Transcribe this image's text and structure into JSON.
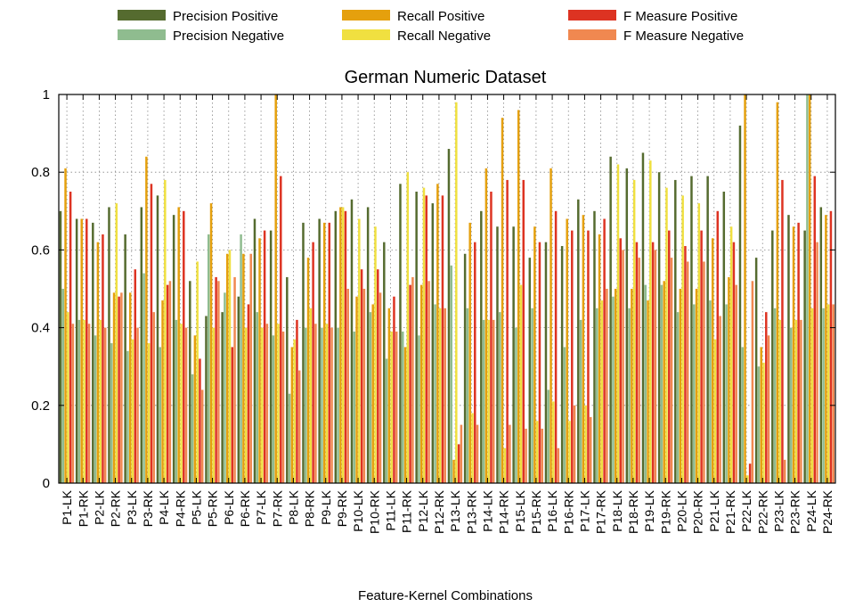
{
  "chart_data": {
    "type": "bar",
    "title": "German Numeric Dataset",
    "xlabel": "Feature-Kernel Combinations",
    "ylabel": "",
    "ylim": [
      0,
      1
    ],
    "yticks": [
      0,
      0.2,
      0.4,
      0.6,
      0.8,
      1
    ],
    "ytick_labels": [
      "0",
      "0.2",
      "0.4",
      "0.6",
      "0.8",
      "1"
    ],
    "grid": true,
    "legend_position": "top",
    "categories": [
      "P1-LK",
      "P1-RK",
      "P2-LK",
      "P2-RK",
      "P3-LK",
      "P3-RK",
      "P4-LK",
      "P4-RK",
      "P5-LK",
      "P5-RK",
      "P6-LK",
      "P6-RK",
      "P7-LK",
      "P7-RK",
      "P8-LK",
      "P8-RK",
      "P9-LK",
      "P9-RK",
      "P10-LK",
      "P10-RK",
      "P11-LK",
      "P11-RK",
      "P12-LK",
      "P12-RK",
      "P13-LK",
      "P13-RK",
      "P14-LK",
      "P14-RK",
      "P15-LK",
      "P15-RK",
      "P16-LK",
      "P16-RK",
      "P17-LK",
      "P17-RK",
      "P18-LK",
      "P18-RK",
      "P19-LK",
      "P19-RK",
      "P20-LK",
      "P20-RK",
      "P21-LK",
      "P21-RK",
      "P22-LK",
      "P22-RK",
      "P23-LK",
      "P23-RK",
      "P24-LK",
      "P24-RK"
    ],
    "series": [
      {
        "name": "Precision Positive",
        "color": "#556b2f",
        "values": [
          0.7,
          0.68,
          0.67,
          0.71,
          0.64,
          0.71,
          0.74,
          0.69,
          0.52,
          0.43,
          0.44,
          0.48,
          0.68,
          0.65,
          0.53,
          0.67,
          0.68,
          0.7,
          0.73,
          0.71,
          0.62,
          0.77,
          0.75,
          0.72,
          0.86,
          0.59,
          0.7,
          0.66,
          0.66,
          0.58,
          0.62,
          0.61,
          0.73,
          0.7,
          0.84,
          0.81,
          0.85,
          0.8,
          0.78,
          0.79,
          0.79,
          0.75,
          0.92,
          0.58,
          0.65,
          0.69,
          0.65,
          0.71
        ]
      },
      {
        "name": "Precision Negative",
        "color": "#8fbc8f",
        "values": [
          0.5,
          0.42,
          0.38,
          0.36,
          0.34,
          0.54,
          0.35,
          0.42,
          0.28,
          0.64,
          0.49,
          0.64,
          0.44,
          0.38,
          0.23,
          0.4,
          0.4,
          0.4,
          0.39,
          0.44,
          0.32,
          0.39,
          0.38,
          0.46,
          0.56,
          0.45,
          0.42,
          0.44,
          0.4,
          0.45,
          0.24,
          0.35,
          0.42,
          0.45,
          0.48,
          0.45,
          0.51,
          0.51,
          0.44,
          0.46,
          0.47,
          0.46,
          0.35,
          0.3,
          0.45,
          0.4,
          1.0,
          0.45
        ]
      },
      {
        "name": "Recall Positive",
        "color": "#e5a00d",
        "values": [
          0.81,
          0.68,
          0.62,
          0.49,
          0.49,
          0.84,
          0.47,
          0.71,
          0.38,
          0.72,
          0.59,
          0.59,
          0.63,
          1.0,
          0.35,
          0.58,
          0.67,
          0.71,
          0.48,
          0.46,
          0.45,
          0.35,
          0.51,
          0.77,
          0.06,
          0.67,
          0.81,
          0.94,
          0.96,
          0.66,
          0.81,
          0.68,
          0.69,
          0.64,
          0.5,
          0.5,
          0.47,
          0.52,
          0.5,
          0.5,
          0.63,
          0.53,
          1.0,
          0.35,
          0.98,
          0.66,
          1.0,
          0.69
        ]
      },
      {
        "name": "Recall Negative",
        "color": "#f0e040",
        "values": [
          0.44,
          0.42,
          0.42,
          0.72,
          0.37,
          0.36,
          0.78,
          0.41,
          0.57,
          0.4,
          0.6,
          0.4,
          0.4,
          0.41,
          0.37,
          0.45,
          0.41,
          0.71,
          0.68,
          0.66,
          0.39,
          0.8,
          0.76,
          0.45,
          0.98,
          0.18,
          0.42,
          0.09,
          0.51,
          0.16,
          0.21,
          0.16,
          0.2,
          0.47,
          0.82,
          0.78,
          0.83,
          0.76,
          0.74,
          0.72,
          0.37,
          0.66,
          0.02,
          0.31,
          0.42,
          0.42,
          0.45,
          0.46
        ]
      },
      {
        "name": "F Measure Positive",
        "color": "#dd3322",
        "values": [
          0.75,
          0.68,
          0.64,
          0.48,
          0.55,
          0.77,
          0.51,
          0.7,
          0.32,
          0.53,
          0.35,
          0.46,
          0.65,
          0.79,
          0.42,
          0.62,
          0.67,
          0.7,
          0.55,
          0.55,
          0.48,
          0.51,
          0.74,
          0.74,
          0.1,
          0.62,
          0.75,
          0.78,
          0.78,
          0.62,
          0.7,
          0.65,
          0.65,
          0.68,
          0.63,
          0.62,
          0.62,
          0.65,
          0.61,
          0.65,
          0.7,
          0.62,
          0.05,
          0.44,
          0.78,
          0.67,
          0.79,
          0.7
        ]
      },
      {
        "name": "F Measure Negative",
        "color": "#f08850",
        "values": [
          0.41,
          0.41,
          0.4,
          0.49,
          0.4,
          0.44,
          0.52,
          0.4,
          0.24,
          0.52,
          0.53,
          0.59,
          0.41,
          0.39,
          0.29,
          0.41,
          0.4,
          0.5,
          0.5,
          0.49,
          0.39,
          0.53,
          0.52,
          0.45,
          0.15,
          0.15,
          0.42,
          0.15,
          0.14,
          0.14,
          0.09,
          0.2,
          0.17,
          0.5,
          0.6,
          0.58,
          0.6,
          0.58,
          0.57,
          0.57,
          0.43,
          0.51,
          0.52,
          0.38,
          0.06,
          0.42,
          0.62,
          0.46
        ]
      }
    ]
  }
}
